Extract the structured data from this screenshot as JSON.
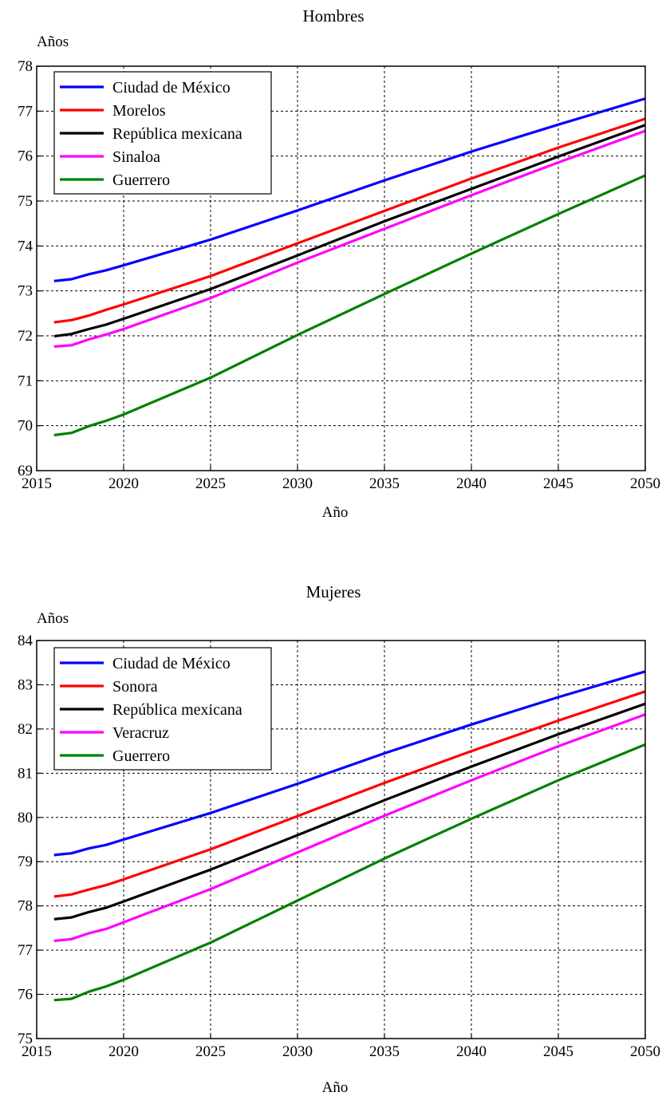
{
  "chart_data": [
    {
      "type": "line",
      "title": "Hombres",
      "xlabel": "Año",
      "ylabel": "Años",
      "xlim": [
        2015,
        2050
      ],
      "ylim": [
        69,
        78
      ],
      "xticks": [
        2015,
        2020,
        2025,
        2030,
        2035,
        2040,
        2045,
        2050
      ],
      "yticks": [
        69,
        70,
        71,
        72,
        73,
        74,
        75,
        76,
        77,
        78
      ],
      "grid": true,
      "legend_position": "top-left",
      "x": [
        2016,
        2017,
        2018,
        2019,
        2020,
        2025,
        2030,
        2035,
        2040,
        2045,
        2050
      ],
      "series": [
        {
          "name": "Ciudad de México",
          "color": "#0000ff",
          "values": [
            73.22,
            73.26,
            73.37,
            73.46,
            73.57,
            74.14,
            74.79,
            75.46,
            76.1,
            76.7,
            77.28
          ]
        },
        {
          "name": "Morelos",
          "color": "#ff0000",
          "values": [
            72.3,
            72.35,
            72.45,
            72.58,
            72.7,
            73.33,
            74.06,
            74.78,
            75.5,
            76.19,
            76.83
          ]
        },
        {
          "name": "República mexicana",
          "color": "#000000",
          "values": [
            71.99,
            72.04,
            72.15,
            72.25,
            72.38,
            73.04,
            73.79,
            74.55,
            75.27,
            75.99,
            76.69
          ]
        },
        {
          "name": "Sinaloa",
          "color": "#ff00ff",
          "values": [
            71.76,
            71.79,
            71.92,
            72.03,
            72.15,
            72.84,
            73.63,
            74.38,
            75.13,
            75.86,
            76.56
          ]
        },
        {
          "name": "Guerrero",
          "color": "#008000",
          "values": [
            69.79,
            69.84,
            69.99,
            70.11,
            70.25,
            71.07,
            72.02,
            72.93,
            73.83,
            74.71,
            75.57
          ]
        }
      ]
    },
    {
      "type": "line",
      "title": "Mujeres",
      "xlabel": "Año",
      "ylabel": "Años",
      "xlim": [
        2015,
        2050
      ],
      "ylim": [
        75,
        84
      ],
      "xticks": [
        2015,
        2020,
        2025,
        2030,
        2035,
        2040,
        2045,
        2050
      ],
      "yticks": [
        75,
        76,
        77,
        78,
        79,
        80,
        81,
        82,
        83,
        84
      ],
      "grid": true,
      "legend_position": "top-left",
      "x": [
        2016,
        2017,
        2018,
        2019,
        2020,
        2025,
        2030,
        2035,
        2040,
        2045,
        2050
      ],
      "series": [
        {
          "name": "Ciudad de México",
          "color": "#0000ff",
          "values": [
            79.15,
            79.19,
            79.3,
            79.38,
            79.5,
            80.1,
            80.76,
            81.45,
            82.1,
            82.72,
            83.3
          ]
        },
        {
          "name": "Sonora",
          "color": "#ff0000",
          "values": [
            78.21,
            78.26,
            78.37,
            78.47,
            78.6,
            79.28,
            80.03,
            80.78,
            81.5,
            82.19,
            82.85
          ]
        },
        {
          "name": "República mexicana",
          "color": "#000000",
          "values": [
            77.7,
            77.74,
            77.86,
            77.96,
            78.1,
            78.82,
            79.6,
            80.39,
            81.15,
            81.88,
            82.57
          ]
        },
        {
          "name": "Veracruz",
          "color": "#ff00ff",
          "values": [
            77.21,
            77.25,
            77.38,
            77.48,
            77.63,
            78.38,
            79.21,
            80.04,
            80.84,
            81.61,
            82.33
          ]
        },
        {
          "name": "Guerrero",
          "color": "#008000",
          "values": [
            75.87,
            75.9,
            76.06,
            76.18,
            76.33,
            77.17,
            78.12,
            79.07,
            79.97,
            80.84,
            81.65
          ]
        }
      ]
    }
  ]
}
